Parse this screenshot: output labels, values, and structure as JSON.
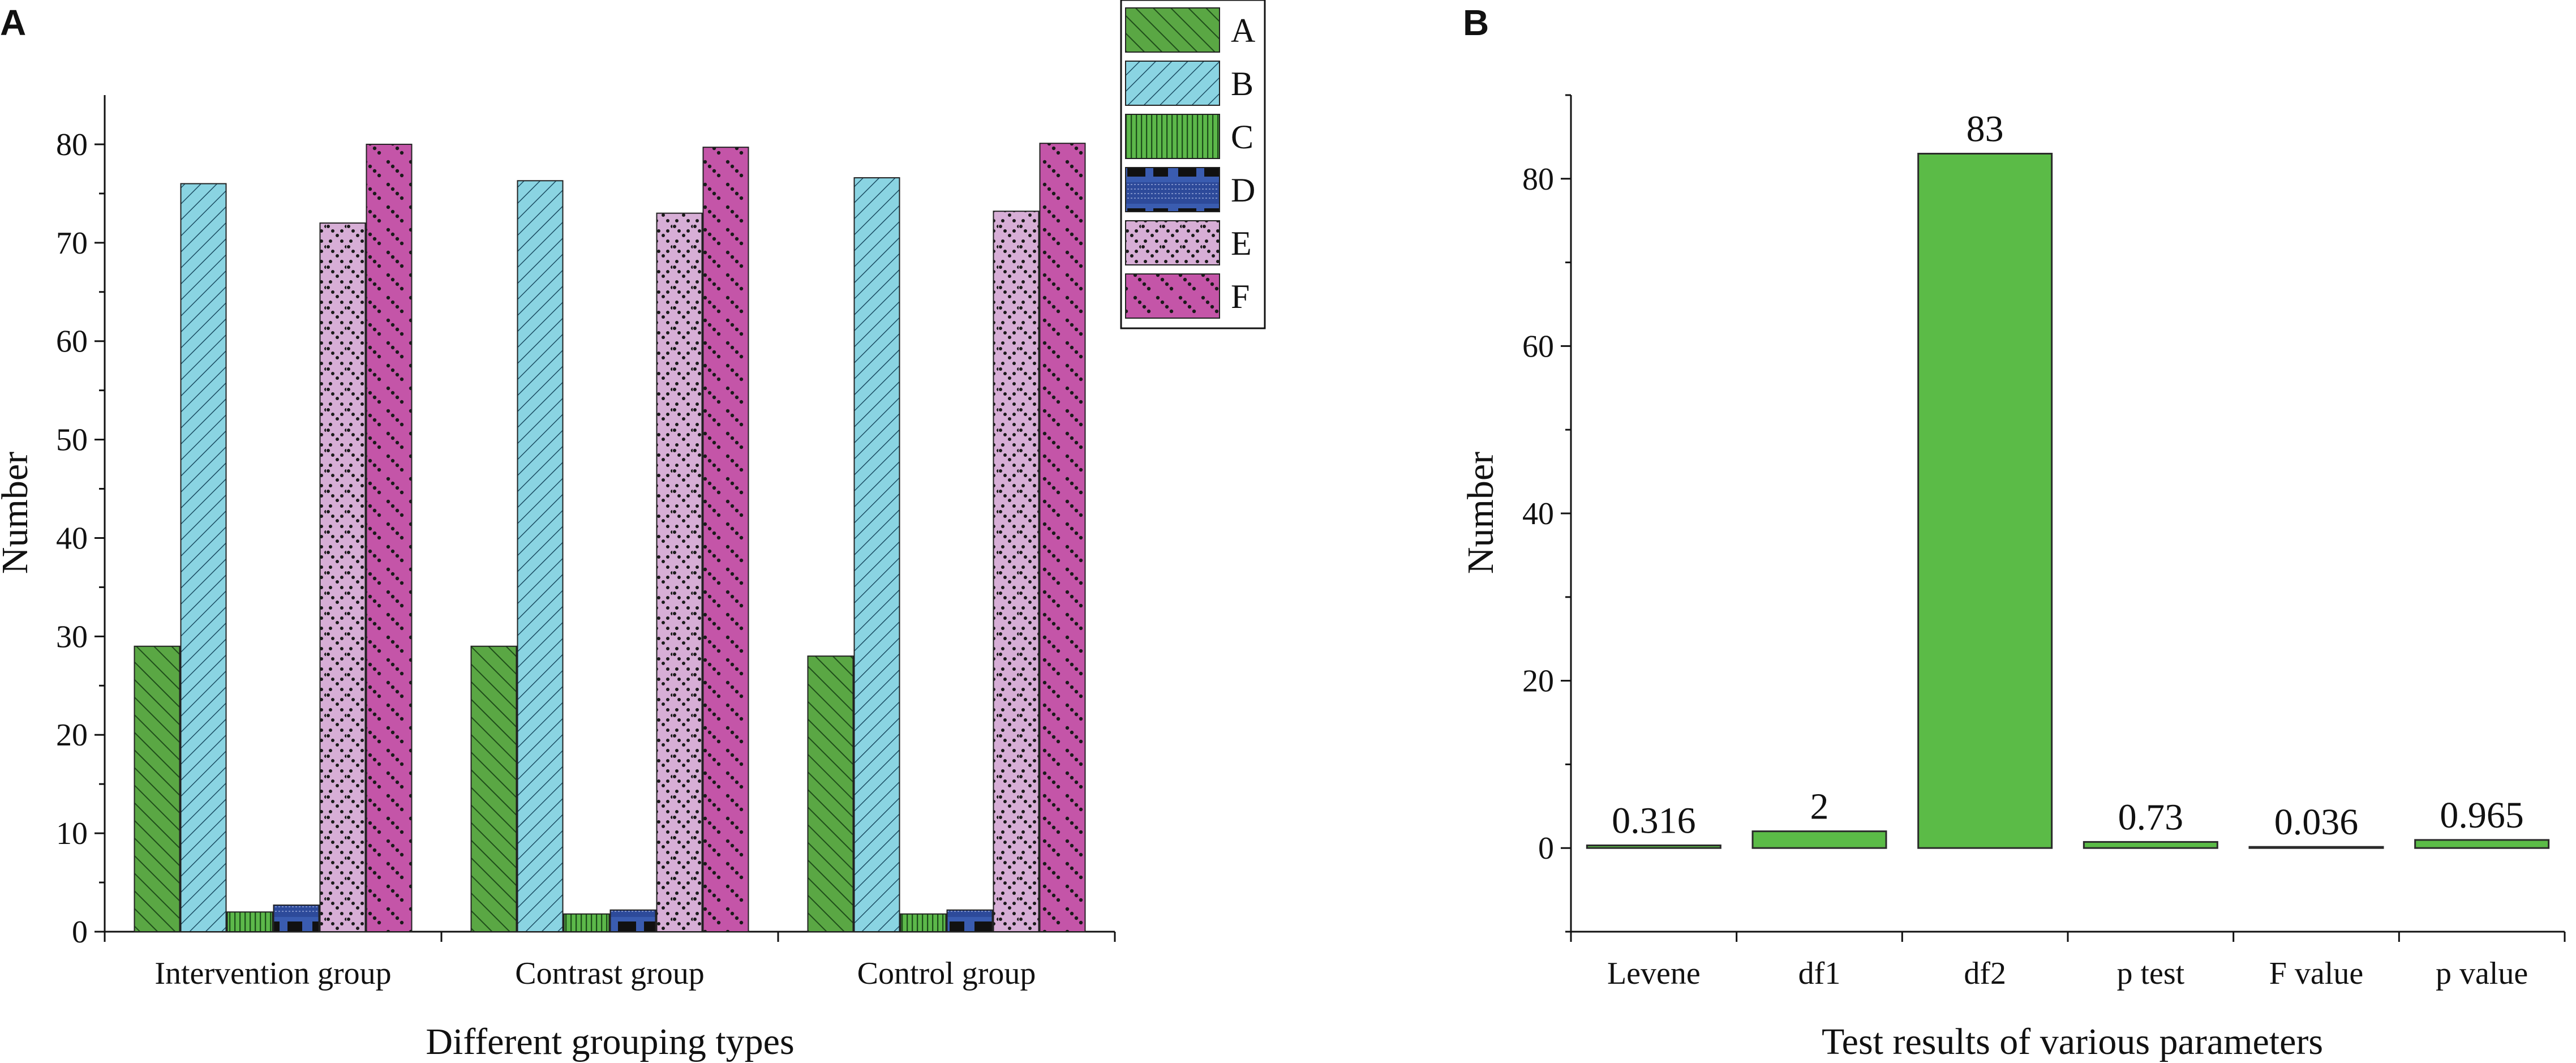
{
  "figure": {
    "panel_a_letter": "A",
    "panel_b_letter": "B"
  },
  "chart_data": [
    {
      "type": "bar",
      "panel": "A",
      "title": "",
      "xlabel": "Different grouping types",
      "ylabel": "Number",
      "categories": [
        "Intervention group",
        "Contrast group",
        "Control group"
      ],
      "series": [
        {
          "name": "A",
          "values": [
            29,
            29,
            28
          ],
          "color": "#5aa744"
        },
        {
          "name": "B",
          "values": [
            76,
            76.3,
            76.6
          ],
          "color": "#8ad4e2"
        },
        {
          "name": "C",
          "values": [
            2,
            1.8,
            1.8
          ],
          "color": "#5cb84a"
        },
        {
          "name": "D",
          "values": [
            2.7,
            2.2,
            2.2
          ],
          "color": "#3a5cb0"
        },
        {
          "name": "E",
          "values": [
            72,
            73,
            73.2
          ],
          "color": "#d7aed6"
        },
        {
          "name": "F",
          "values": [
            80,
            79.7,
            80.1
          ],
          "color": "#c455a8"
        }
      ],
      "ylim": [
        0,
        85
      ],
      "yticks": [
        0,
        10,
        20,
        30,
        40,
        50,
        60,
        70,
        80
      ],
      "legend_position": "top-right",
      "grid": false
    },
    {
      "type": "bar",
      "panel": "B",
      "title": "",
      "xlabel": "Test results of various parameters",
      "ylabel": "Number",
      "categories": [
        "Levene",
        "df1",
        "df2",
        "p test",
        "F value",
        "p value"
      ],
      "values": [
        0.316,
        2,
        83,
        0.73,
        0.036,
        0.965
      ],
      "data_labels": [
        "0.316",
        "2",
        "83",
        "0.73",
        "0.036",
        "0.965"
      ],
      "color": "#5bbb47",
      "ylim": [
        -10,
        90
      ],
      "yticks": [
        0,
        20,
        40,
        60,
        80
      ],
      "grid": false
    }
  ]
}
